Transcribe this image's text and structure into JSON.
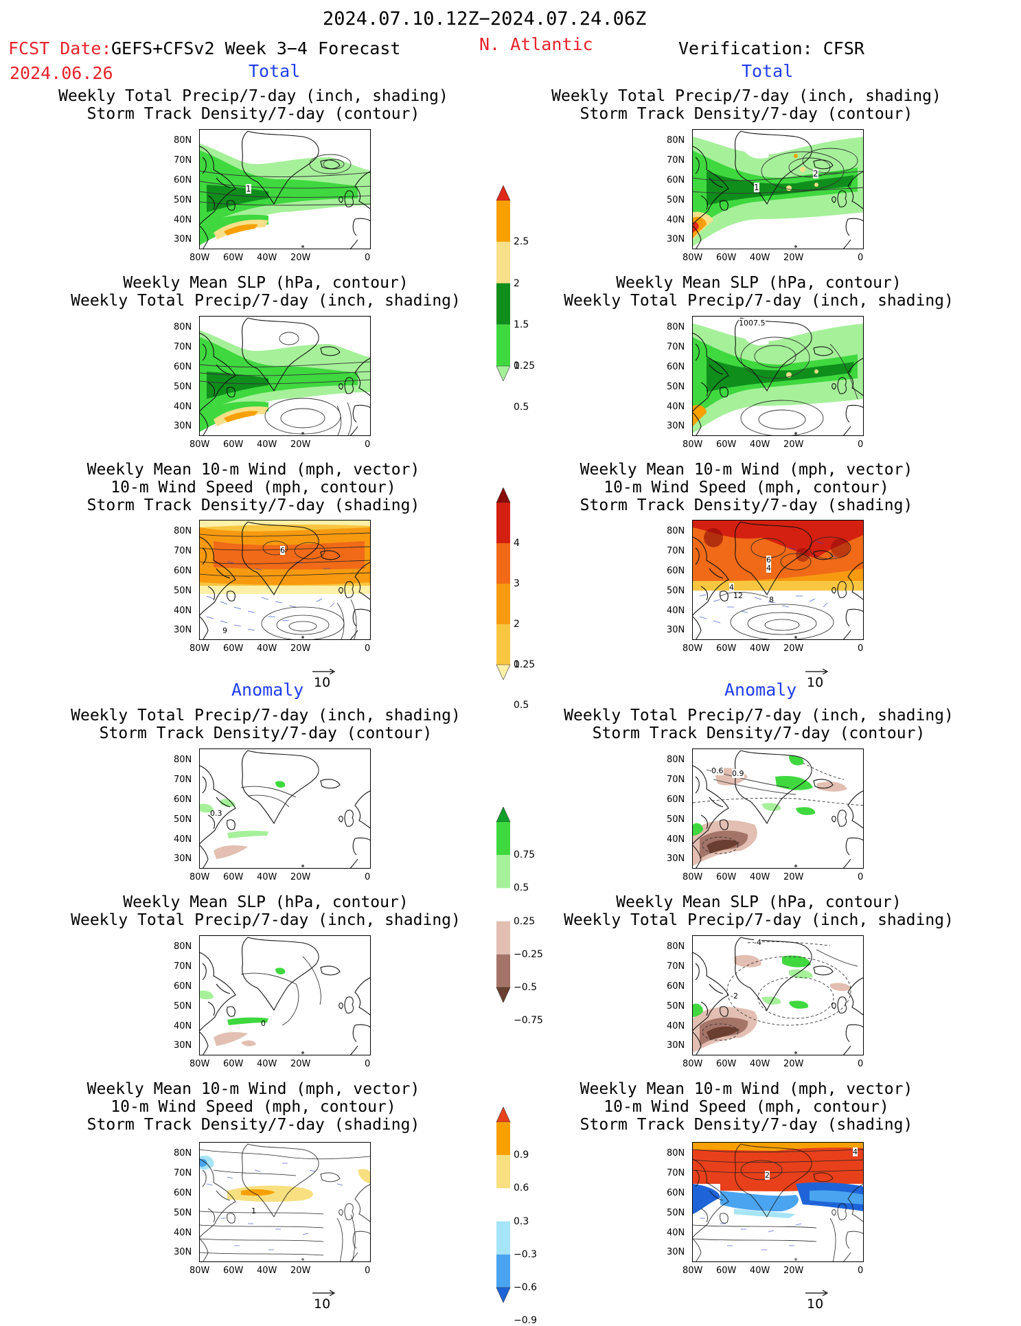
{
  "header": {
    "date_range": "2024.07.10.12Z−2024.07.24.06Z",
    "fcst_label": "FCST Date:",
    "model": "GEFS+CFSv2 Week 3−4 Forecast",
    "fcst_date": "2024.06.26",
    "region": "N. Atlantic",
    "verification": "Verification: CFSR"
  },
  "sections": {
    "total": "Total",
    "anomaly": "Anomaly"
  },
  "panel_titles": {
    "precip_track": "Weekly Total Precip/7-day (inch, shading)\nStorm Track Density/7-day (contour)",
    "slp_precip": "Weekly Mean SLP (hPa, contour)\nWeekly Total Precip/7-day (inch, shading)",
    "wind_track": "Weekly Mean 10-m Wind (mph, vector)\n10-m Wind Speed (mph, contour)\nStorm Track Density/7-day (shading)"
  },
  "axes": {
    "lat_ticks": [
      "80N",
      "70N",
      "60N",
      "50N",
      "40N",
      "30N"
    ],
    "lon_ticks": [
      "80W",
      "60W",
      "40W",
      "20W",
      "0"
    ]
  },
  "vector_ref": "10",
  "contour_labels": {
    "fcst_total_precip": [
      "1"
    ],
    "obs_total_precip": [
      "1",
      "2"
    ],
    "obs_total_slp": [
      "1007.5"
    ],
    "fcst_total_wind": [
      "6",
      "9"
    ],
    "obs_total_wind": [
      "6",
      "4",
      "4",
      "12",
      "8"
    ],
    "fcst_anom_precip": [
      "0.3"
    ],
    "obs_anom_precip": [
      "0.6",
      "0.9"
    ],
    "fcst_anom_slp": [
      "0"
    ],
    "obs_anom_slp": [
      "-4",
      "-2"
    ],
    "fcst_anom_wind": [
      "1"
    ],
    "obs_anom_wind": [
      "4",
      "2"
    ]
  },
  "colorbars": {
    "total_precip": {
      "labels": [
        "2.5",
        "2",
        "1.5",
        "1",
        "0.5",
        "0.25"
      ],
      "colors": [
        "#e0281a",
        "#f7a000",
        "#f8e08a",
        "#0f8e1c",
        "#3fd83f",
        "#a6f09a"
      ]
    },
    "total_track": {
      "labels": [
        "4",
        "3",
        "2",
        "1",
        "0.5",
        "0.25"
      ],
      "colors": [
        "#8a0a0a",
        "#d42010",
        "#f06a18",
        "#f79a10",
        "#f8c640",
        "#fdf0a8"
      ]
    },
    "anom_precip": {
      "labels": [
        "0.75",
        "0.5",
        "0.25",
        "−0.25",
        "−0.5",
        "−0.75"
      ],
      "colors": [
        "#10a02a",
        "#3fd83f",
        "#a6f09a",
        "#ffffff",
        "#e2bfb2",
        "#a47468",
        "#6a3e30"
      ]
    },
    "anom_track": {
      "labels": [
        "0.9",
        "0.6",
        "0.3",
        "−0.3",
        "−0.6",
        "−0.9"
      ],
      "colors": [
        "#e8401a",
        "#f7a000",
        "#f8e080",
        "#ffffff",
        "#a6e4f8",
        "#4aa4f0",
        "#1e64d8"
      ]
    }
  }
}
